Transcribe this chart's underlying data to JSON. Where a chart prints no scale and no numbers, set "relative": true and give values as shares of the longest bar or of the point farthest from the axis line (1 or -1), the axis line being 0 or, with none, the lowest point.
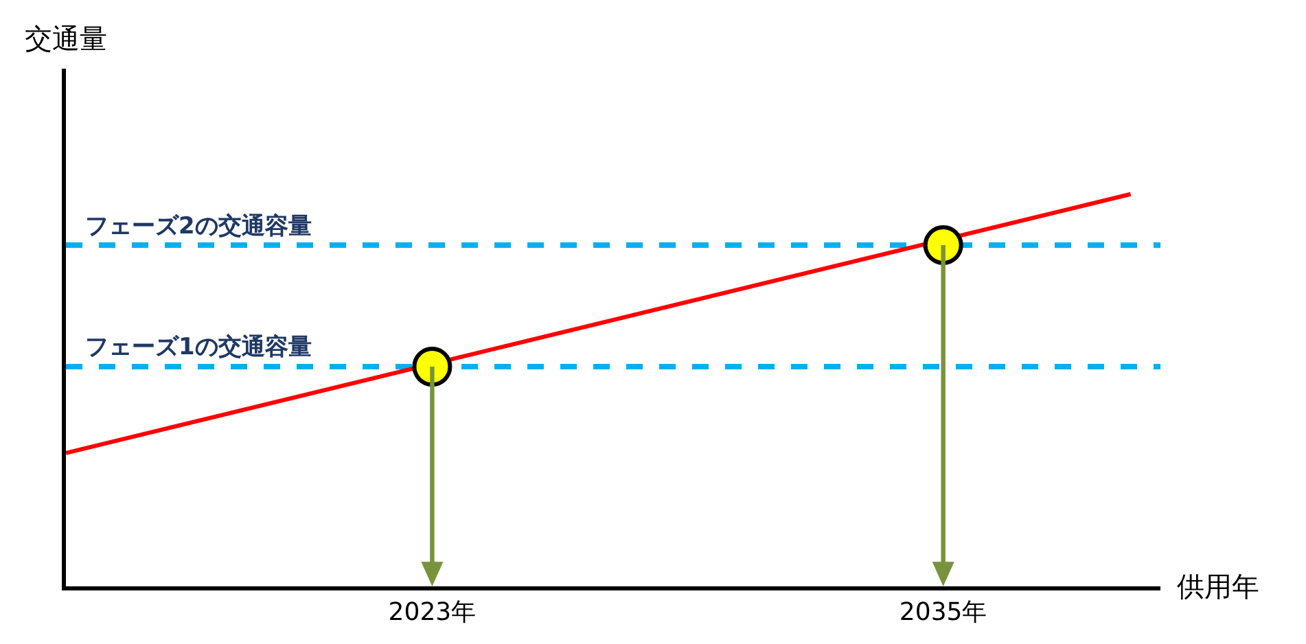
{
  "chart_data": {
    "type": "line",
    "relative": true,
    "xlabel": "供用年",
    "annotations": [
      "交通量"
    ],
    "xlim": [
      2014.4,
      2040.1
    ],
    "xticks": [
      {
        "value": 2023,
        "label": "2023年"
      },
      {
        "value": 2035,
        "label": "2035年"
      }
    ],
    "series": [
      {
        "color": "#ff0000",
        "x": [
          2014.4,
          2039.4
        ],
        "values": [
          0.34,
          1.0
        ],
        "marker": "none"
      },
      {
        "type": "scatter",
        "color": "#ffff00",
        "x": [
          2023,
          2035
        ],
        "values": [
          0.56,
          0.87
        ],
        "marker": "circle"
      }
    ],
    "ref_lines": [
      {
        "axis": "y",
        "value": 0.87,
        "label": "フェーズ2の交通容量",
        "color": "#00b0f0",
        "line_style": "dashed"
      },
      {
        "axis": "y",
        "value": 0.56,
        "label": "フェーズ1の交通容量",
        "color": "#00b0f0",
        "line_style": "dashed"
      }
    ],
    "grid": false
  }
}
